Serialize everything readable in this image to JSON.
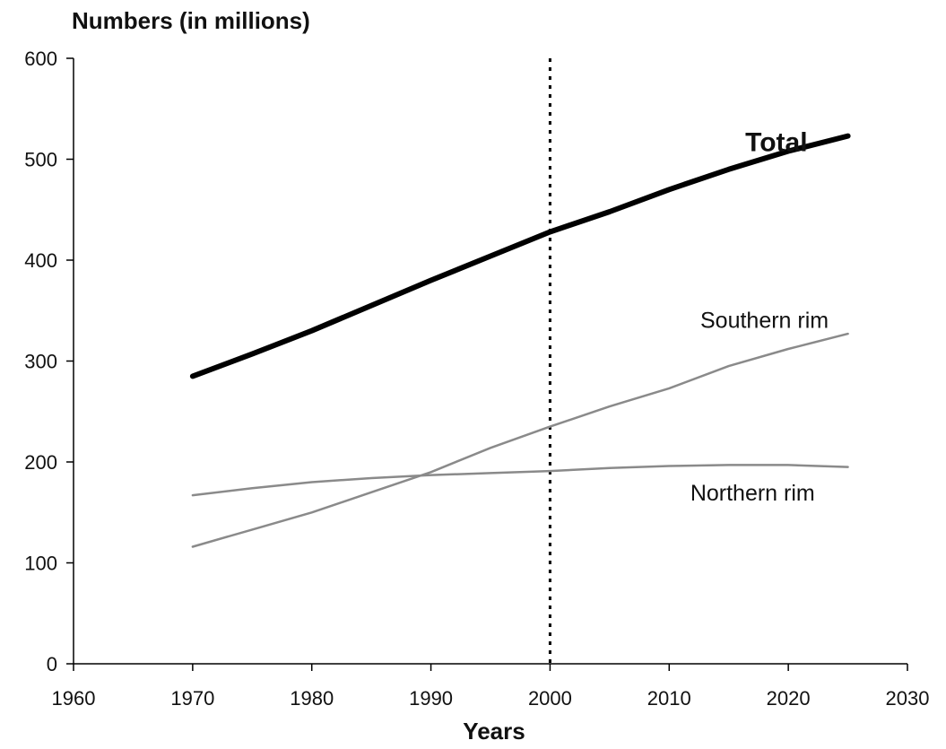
{
  "chart_data": {
    "type": "line",
    "title": "",
    "ylabel": "Numbers (in millions)",
    "xlabel": "Years",
    "xlim": [
      1960,
      2030
    ],
    "ylim": [
      0,
      600
    ],
    "xticks": [
      1960,
      1970,
      1980,
      1990,
      2000,
      2010,
      2020,
      2030
    ],
    "yticks": [
      0,
      100,
      200,
      300,
      400,
      500,
      600
    ],
    "grid": false,
    "legend": "none",
    "reference_line": {
      "x": 2000,
      "style": "dotted"
    },
    "x": [
      1970,
      1975,
      1980,
      1985,
      1990,
      1995,
      2000,
      2005,
      2010,
      2015,
      2020,
      2025
    ],
    "series": [
      {
        "name": "Total",
        "color": "#000000",
        "values": [
          285,
          307,
          330,
          355,
          380,
          404,
          428,
          448,
          470,
          490,
          508,
          523
        ]
      },
      {
        "name": "Southern rim",
        "color": "#8a8a8a",
        "values": [
          116,
          133,
          150,
          170,
          190,
          214,
          235,
          255,
          273,
          295,
          312,
          327
        ]
      },
      {
        "name": "Northern rim",
        "color": "#8a8a8a",
        "values": [
          167,
          174,
          180,
          184,
          187,
          189,
          191,
          194,
          196,
          197,
          197,
          195
        ]
      }
    ]
  }
}
